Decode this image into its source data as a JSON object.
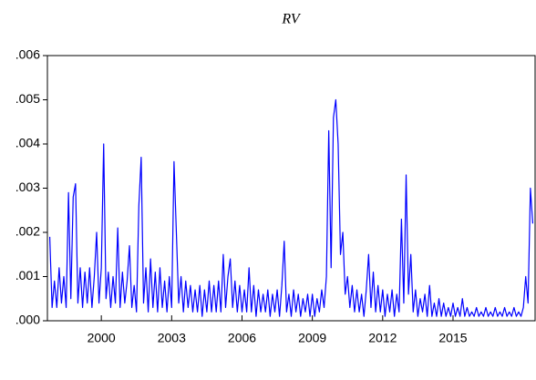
{
  "chart_data": {
    "type": "line",
    "title": "RV",
    "color": "#0000ff",
    "xlim": [
      1997.7,
      2018.5
    ],
    "xticks": [
      2000,
      2003,
      2006,
      2009,
      2012,
      2015
    ],
    "ylim": [
      0,
      0.006
    ],
    "yticks": [
      {
        "value": 0,
        "label": ".000"
      },
      {
        "value": 0.001,
        "label": ".001"
      },
      {
        "value": 0.002,
        "label": ".002"
      },
      {
        "value": 0.003,
        "label": ".003"
      },
      {
        "value": 0.004,
        "label": ".004"
      },
      {
        "value": 0.005,
        "label": ".005"
      },
      {
        "value": 0.006,
        "label": ".006"
      }
    ],
    "x": [
      1997.8,
      1997.9,
      1998.0,
      1998.1,
      1998.2,
      1998.3,
      1998.4,
      1998.5,
      1998.6,
      1998.7,
      1998.8,
      1998.9,
      1999.0,
      1999.1,
      1999.2,
      1999.3,
      1999.4,
      1999.5,
      1999.6,
      1999.7,
      1999.8,
      1999.9,
      2000.0,
      2000.1,
      2000.2,
      2000.3,
      2000.4,
      2000.5,
      2000.6,
      2000.7,
      2000.8,
      2000.9,
      2001.0,
      2001.1,
      2001.2,
      2001.3,
      2001.4,
      2001.5,
      2001.6,
      2001.7,
      2001.8,
      2001.9,
      2002.0,
      2002.1,
      2002.2,
      2002.3,
      2002.4,
      2002.5,
      2002.6,
      2002.7,
      2002.8,
      2002.9,
      2003.0,
      2003.1,
      2003.2,
      2003.3,
      2003.4,
      2003.5,
      2003.6,
      2003.7,
      2003.8,
      2003.9,
      2004.0,
      2004.1,
      2004.2,
      2004.3,
      2004.4,
      2004.5,
      2004.6,
      2004.7,
      2004.8,
      2004.9,
      2005.0,
      2005.1,
      2005.2,
      2005.3,
      2005.4,
      2005.5,
      2005.6,
      2005.7,
      2005.8,
      2005.9,
      2006.0,
      2006.1,
      2006.2,
      2006.3,
      2006.4,
      2006.5,
      2006.6,
      2006.7,
      2006.8,
      2006.9,
      2007.0,
      2007.1,
      2007.2,
      2007.3,
      2007.4,
      2007.5,
      2007.6,
      2007.7,
      2007.8,
      2007.9,
      2008.0,
      2008.1,
      2008.2,
      2008.3,
      2008.4,
      2008.5,
      2008.6,
      2008.7,
      2008.8,
      2008.9,
      2009.0,
      2009.1,
      2009.2,
      2009.3,
      2009.4,
      2009.5,
      2009.6,
      2009.7,
      2009.8,
      2009.9,
      2010.0,
      2010.1,
      2010.2,
      2010.3,
      2010.4,
      2010.5,
      2010.6,
      2010.7,
      2010.8,
      2010.9,
      2011.0,
      2011.1,
      2011.2,
      2011.3,
      2011.4,
      2011.5,
      2011.6,
      2011.7,
      2011.8,
      2011.9,
      2012.0,
      2012.1,
      2012.2,
      2012.3,
      2012.4,
      2012.5,
      2012.6,
      2012.7,
      2012.8,
      2012.9,
      2013.0,
      2013.1,
      2013.2,
      2013.3,
      2013.4,
      2013.5,
      2013.6,
      2013.7,
      2013.8,
      2013.9,
      2014.0,
      2014.1,
      2014.2,
      2014.3,
      2014.4,
      2014.5,
      2014.6,
      2014.7,
      2014.8,
      2014.9,
      2015.0,
      2015.1,
      2015.2,
      2015.3,
      2015.4,
      2015.5,
      2015.6,
      2015.7,
      2015.8,
      2015.9,
      2016.0,
      2016.1,
      2016.2,
      2016.3,
      2016.4,
      2016.5,
      2016.6,
      2016.7,
      2016.8,
      2016.9,
      2017.0,
      2017.1,
      2017.2,
      2017.3,
      2017.4,
      2017.5,
      2017.6,
      2017.7,
      2017.8,
      2017.9,
      2018.0,
      2018.1,
      2018.2,
      2018.3,
      2018.4
    ],
    "values": [
      0.0019,
      0.0003,
      0.0009,
      0.0003,
      0.0012,
      0.0004,
      0.001,
      0.0003,
      0.0029,
      0.0005,
      0.0028,
      0.0031,
      0.0004,
      0.0012,
      0.0003,
      0.0011,
      0.0004,
      0.0012,
      0.0003,
      0.001,
      0.002,
      0.0004,
      0.0012,
      0.004,
      0.0005,
      0.0011,
      0.0003,
      0.001,
      0.0004,
      0.0021,
      0.0003,
      0.0011,
      0.0004,
      0.0009,
      0.0017,
      0.0003,
      0.0008,
      0.0002,
      0.0026,
      0.0037,
      0.0004,
      0.0012,
      0.0002,
      0.0014,
      0.0003,
      0.0011,
      0.0002,
      0.0012,
      0.0003,
      0.0009,
      0.0002,
      0.001,
      0.0003,
      0.0036,
      0.002,
      0.0004,
      0.001,
      0.0002,
      0.0009,
      0.0003,
      0.0008,
      0.0002,
      0.0007,
      0.0002,
      0.0008,
      0.0001,
      0.0007,
      0.0002,
      0.0009,
      0.0002,
      0.0008,
      0.0002,
      0.0009,
      0.0002,
      0.0015,
      0.0003,
      0.001,
      0.0014,
      0.0003,
      0.0009,
      0.0002,
      0.0008,
      0.0002,
      0.0007,
      0.0002,
      0.0012,
      0.0002,
      0.0008,
      0.0001,
      0.0007,
      0.0002,
      0.0006,
      0.0002,
      0.0007,
      0.0001,
      0.0006,
      0.0002,
      0.0007,
      0.0001,
      0.0008,
      0.0018,
      0.0002,
      0.0006,
      0.0001,
      0.0007,
      0.0002,
      0.0006,
      0.0001,
      0.0005,
      0.0002,
      0.0006,
      0.0001,
      0.0006,
      0.0001,
      0.0005,
      0.0002,
      0.0007,
      0.0003,
      0.001,
      0.0043,
      0.0012,
      0.0046,
      0.005,
      0.004,
      0.0015,
      0.002,
      0.0006,
      0.001,
      0.0003,
      0.0008,
      0.0002,
      0.0007,
      0.0002,
      0.0006,
      0.0001,
      0.0007,
      0.0015,
      0.0003,
      0.0011,
      0.0002,
      0.0008,
      0.0002,
      0.0007,
      0.0001,
      0.0006,
      0.0002,
      0.0007,
      0.0001,
      0.0006,
      0.0002,
      0.0023,
      0.0004,
      0.0033,
      0.0006,
      0.0015,
      0.0002,
      0.0007,
      0.0001,
      0.0005,
      0.0002,
      0.0006,
      0.0001,
      0.0008,
      0.0001,
      0.0004,
      0.0001,
      0.0005,
      0.0001,
      0.0004,
      0.0001,
      0.0003,
      0.0001,
      0.0004,
      0.0001,
      0.0003,
      0.0001,
      0.0005,
      0.0001,
      0.0003,
      0.0001,
      0.0002,
      0.0001,
      0.0003,
      0.0001,
      0.0002,
      0.0001,
      0.0003,
      0.0001,
      0.0002,
      0.0001,
      0.0003,
      0.0001,
      0.0002,
      0.0001,
      0.0003,
      0.0001,
      0.0002,
      0.0001,
      0.0003,
      0.0001,
      0.0002,
      0.0001,
      0.0003,
      0.001,
      0.0004,
      0.003,
      0.0022
    ]
  }
}
